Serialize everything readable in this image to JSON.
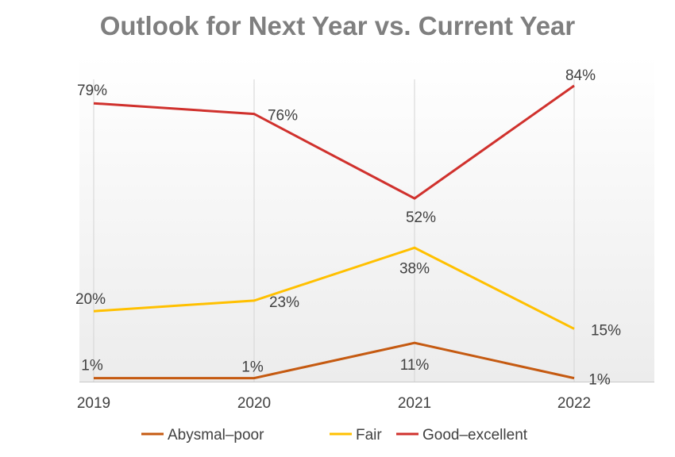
{
  "chart_data": {
    "type": "line",
    "title": "Outlook for Next Year vs. Current Year",
    "categories": [
      "2019",
      "2020",
      "2021",
      "2022"
    ],
    "ylim": [
      0,
      100
    ],
    "grid": "vertical",
    "legend_position": "bottom",
    "series": [
      {
        "name": "Abysmal–poor",
        "color": "#c55a11",
        "values": [
          1,
          1,
          11,
          1
        ],
        "labels": [
          "1%",
          "1%",
          "11%",
          "1%"
        ]
      },
      {
        "name": "Fair",
        "color": "#ffc000",
        "values": [
          20,
          23,
          38,
          15
        ],
        "labels": [
          "20%",
          "23%",
          "38%",
          "15%"
        ]
      },
      {
        "name": "Good–excellent",
        "color": "#d0312d",
        "values": [
          79,
          76,
          52,
          84
        ],
        "labels": [
          "79%",
          "76%",
          "52%",
          "84%"
        ]
      }
    ]
  }
}
